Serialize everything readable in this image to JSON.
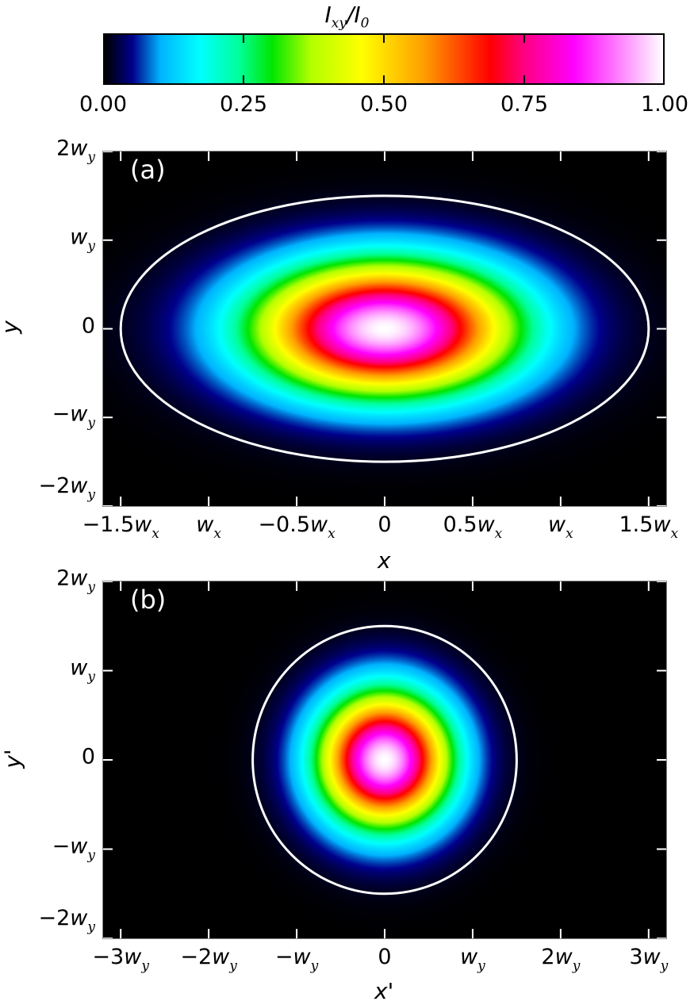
{
  "colorbar": {
    "title_main": "I",
    "title_sub": "xy",
    "title_sep": "/I",
    "title_sub2": "0",
    "ticks": [
      {
        "value": 0.0,
        "label": "0.00"
      },
      {
        "value": 0.25,
        "label": "0.25"
      },
      {
        "value": 0.5,
        "label": "0.50"
      },
      {
        "value": 0.75,
        "label": "0.75"
      },
      {
        "value": 1.0,
        "label": "1.00"
      }
    ],
    "range": [
      0,
      1
    ],
    "colormap": [
      {
        "v": 0.0,
        "color": "#000000"
      },
      {
        "v": 0.05,
        "color": "#00008c"
      },
      {
        "v": 0.1,
        "color": "#00b4ff"
      },
      {
        "v": 0.17,
        "color": "#00ffff"
      },
      {
        "v": 0.24,
        "color": "#00ff9a"
      },
      {
        "v": 0.3,
        "color": "#00e600"
      },
      {
        "v": 0.37,
        "color": "#b4ff00"
      },
      {
        "v": 0.46,
        "color": "#ffff00"
      },
      {
        "v": 0.57,
        "color": "#ffa000"
      },
      {
        "v": 0.69,
        "color": "#ff0000"
      },
      {
        "v": 0.75,
        "color": "#ff0080"
      },
      {
        "v": 0.84,
        "color": "#ff00ff"
      },
      {
        "v": 1.0,
        "color": "#ffffff"
      }
    ]
  },
  "chart_data": [
    {
      "type": "heatmap",
      "panel_label": "(a)",
      "xlabel": "x",
      "ylabel": "y",
      "x_unit": "w_x",
      "y_unit": "w_y",
      "xlim": [
        -1.6,
        1.6
      ],
      "ylim": [
        -2,
        2
      ],
      "intensity": "exp(-2((x/w_x)^2+(y/w_y)^2))",
      "contour": {
        "type": "ellipse",
        "semi_axis_x": 1.5,
        "semi_axis_y": 1.5,
        "color": "#ffffff"
      },
      "xticks": [
        {
          "value": -1.5,
          "main": "−1.5",
          "var": "w",
          "sub": "x"
        },
        {
          "value": -1.0,
          "main": "",
          "var": "w",
          "sub": "x"
        },
        {
          "value": -0.5,
          "main": "−0.5",
          "var": "w",
          "sub": "x"
        },
        {
          "value": 0,
          "main": "0",
          "var": "",
          "sub": ""
        },
        {
          "value": 0.5,
          "main": "0.5",
          "var": "w",
          "sub": "x"
        },
        {
          "value": 1.0,
          "main": "",
          "var": "w",
          "sub": "x"
        },
        {
          "value": 1.5,
          "main": "1.5",
          "var": "w",
          "sub": "x"
        }
      ],
      "yticks": [
        {
          "value": 2,
          "main": "2",
          "var": "w",
          "sub": "y"
        },
        {
          "value": 1,
          "main": "",
          "var": "w",
          "sub": "y"
        },
        {
          "value": 0,
          "main": "0",
          "var": "",
          "sub": ""
        },
        {
          "value": -1,
          "main": "−",
          "var": "w",
          "sub": "y"
        },
        {
          "value": -2,
          "main": "−2",
          "var": "w",
          "sub": "y"
        }
      ]
    },
    {
      "type": "heatmap",
      "panel_label": "(b)",
      "xlabel": "x'",
      "ylabel": "y'",
      "x_unit": "w_y",
      "y_unit": "w_y",
      "xlim": [
        -3.2,
        3.2
      ],
      "ylim": [
        -2,
        2
      ],
      "intensity": "exp(-2((x'/w_y)^2+(y'/w_y)^2))",
      "contour": {
        "type": "circle",
        "semi_axis_x": 1.5,
        "semi_axis_y": 1.5,
        "color": "#ffffff"
      },
      "xticks": [
        {
          "value": -3,
          "main": "−3",
          "var": "w",
          "sub": "y"
        },
        {
          "value": -2,
          "main": "−2",
          "var": "w",
          "sub": "y"
        },
        {
          "value": -1,
          "main": "−",
          "var": "w",
          "sub": "y"
        },
        {
          "value": 0,
          "main": "0",
          "var": "",
          "sub": ""
        },
        {
          "value": 1,
          "main": "",
          "var": "w",
          "sub": "y"
        },
        {
          "value": 2,
          "main": "2",
          "var": "w",
          "sub": "y"
        },
        {
          "value": 3,
          "main": "3",
          "var": "w",
          "sub": "y"
        }
      ],
      "yticks": [
        {
          "value": 2,
          "main": "2",
          "var": "w",
          "sub": "y"
        },
        {
          "value": 1,
          "main": "",
          "var": "w",
          "sub": "y"
        },
        {
          "value": 0,
          "main": "0",
          "var": "",
          "sub": ""
        },
        {
          "value": -1,
          "main": "−",
          "var": "w",
          "sub": "y"
        },
        {
          "value": -2,
          "main": "−2",
          "var": "w",
          "sub": "y"
        }
      ]
    }
  ]
}
